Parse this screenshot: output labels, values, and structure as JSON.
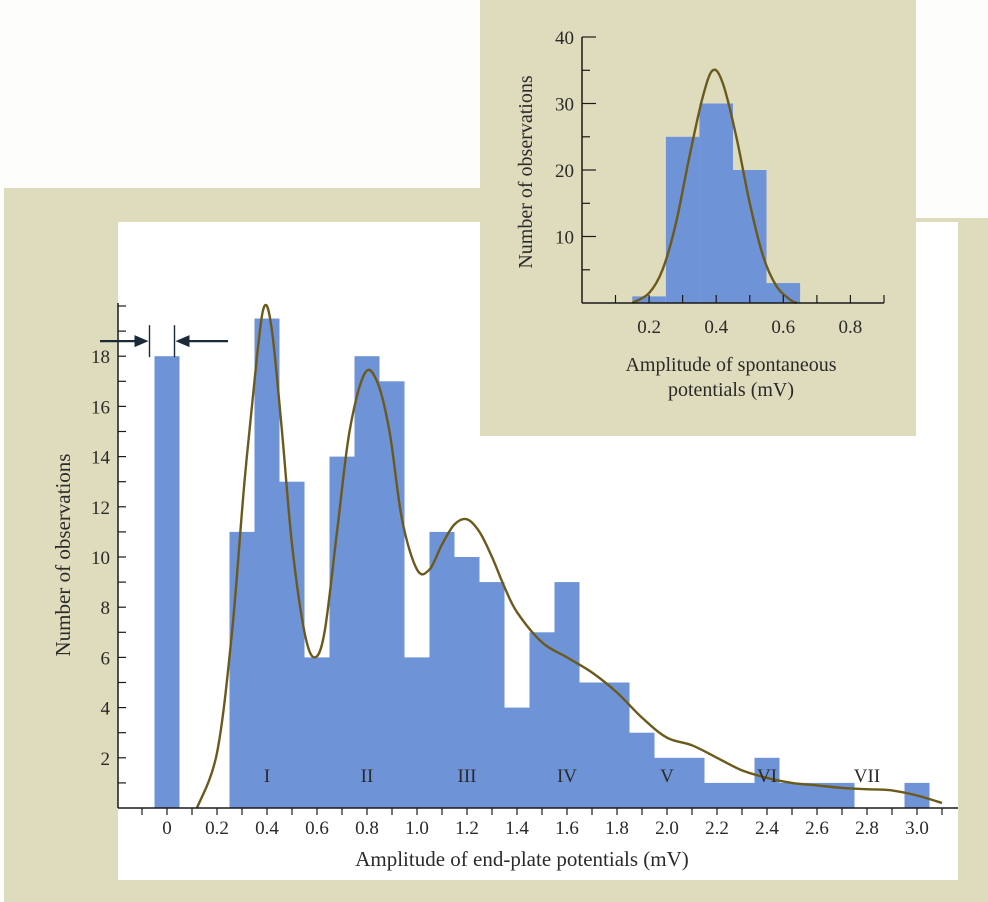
{
  "colors": {
    "panel": "#dedcbc",
    "plot_background": "#ffffff",
    "bar": "#6e93d6",
    "curve": "#6b5a1c",
    "axis": "#1a1a1a",
    "arrow": "#1a2a38"
  },
  "chart_data": [
    {
      "type": "bar",
      "xlabel": "Amplitude of end-plate potentials (mV)",
      "ylabel": "Number of observations",
      "xlim": [
        -0.15,
        3.15
      ],
      "ylim": [
        0,
        20
      ],
      "bin_width": 0.1,
      "x_ticks": [
        "0",
        "0.2",
        "0.4",
        "0.6",
        "0.8",
        "1.0",
        "1.2",
        "1.4",
        "1.6",
        "1.8",
        "2.0",
        "2.2",
        "2.4",
        "2.6",
        "2.8",
        "3.0"
      ],
      "y_ticks": [
        "2",
        "4",
        "6",
        "8",
        "10",
        "12",
        "14",
        "16",
        "18"
      ],
      "bins": [
        {
          "x": 0.0,
          "value": 18
        },
        {
          "x": 0.3,
          "value": 11
        },
        {
          "x": 0.4,
          "value": 19.5
        },
        {
          "x": 0.5,
          "value": 13
        },
        {
          "x": 0.6,
          "value": 6
        },
        {
          "x": 0.7,
          "value": 14
        },
        {
          "x": 0.8,
          "value": 18
        },
        {
          "x": 0.9,
          "value": 17
        },
        {
          "x": 1.0,
          "value": 6
        },
        {
          "x": 1.1,
          "value": 11
        },
        {
          "x": 1.2,
          "value": 10
        },
        {
          "x": 1.3,
          "value": 9
        },
        {
          "x": 1.4,
          "value": 4
        },
        {
          "x": 1.5,
          "value": 7
        },
        {
          "x": 1.6,
          "value": 9
        },
        {
          "x": 1.7,
          "value": 5
        },
        {
          "x": 1.8,
          "value": 5
        },
        {
          "x": 1.9,
          "value": 3
        },
        {
          "x": 2.0,
          "value": 2
        },
        {
          "x": 2.1,
          "value": 2
        },
        {
          "x": 2.2,
          "value": 1
        },
        {
          "x": 2.3,
          "value": 1
        },
        {
          "x": 2.4,
          "value": 2
        },
        {
          "x": 2.5,
          "value": 1
        },
        {
          "x": 2.6,
          "value": 1
        },
        {
          "x": 2.7,
          "value": 1
        },
        {
          "x": 3.0,
          "value": 1
        }
      ],
      "fit_curve": [
        [
          0.12,
          0
        ],
        [
          0.2,
          2.2
        ],
        [
          0.26,
          7
        ],
        [
          0.31,
          13
        ],
        [
          0.36,
          18
        ],
        [
          0.39,
          20
        ],
        [
          0.42,
          19
        ],
        [
          0.46,
          15
        ],
        [
          0.5,
          10.5
        ],
        [
          0.55,
          7
        ],
        [
          0.59,
          6
        ],
        [
          0.63,
          7
        ],
        [
          0.68,
          11
        ],
        [
          0.73,
          15
        ],
        [
          0.79,
          17.3
        ],
        [
          0.84,
          17
        ],
        [
          0.89,
          15
        ],
        [
          0.94,
          11.5
        ],
        [
          1.0,
          9.5
        ],
        [
          1.05,
          9.5
        ],
        [
          1.1,
          10.5
        ],
        [
          1.15,
          11.3
        ],
        [
          1.2,
          11.5
        ],
        [
          1.25,
          11
        ],
        [
          1.3,
          10
        ],
        [
          1.35,
          8.8
        ],
        [
          1.4,
          7.8
        ],
        [
          1.5,
          6.6
        ],
        [
          1.6,
          6
        ],
        [
          1.7,
          5.4
        ],
        [
          1.8,
          4.6
        ],
        [
          1.9,
          3.6
        ],
        [
          2.0,
          2.8
        ],
        [
          2.1,
          2.5
        ],
        [
          2.2,
          2
        ],
        [
          2.3,
          1.5
        ],
        [
          2.4,
          1.2
        ],
        [
          2.5,
          1
        ],
        [
          2.6,
          0.9
        ],
        [
          2.7,
          0.8
        ],
        [
          2.8,
          0.75
        ],
        [
          2.9,
          0.7
        ],
        [
          3.0,
          0.5
        ],
        [
          3.1,
          0.2
        ]
      ],
      "peak_labels": [
        {
          "label": "I",
          "x": 0.4
        },
        {
          "label": "II",
          "x": 0.8
        },
        {
          "label": "III",
          "x": 1.2
        },
        {
          "label": "IV",
          "x": 1.6
        },
        {
          "label": "V",
          "x": 2.0
        },
        {
          "label": "VI",
          "x": 2.4
        },
        {
          "label": "VII",
          "x": 2.8
        }
      ],
      "gap_marker": {
        "x_start": -0.07,
        "x_end": 0.03,
        "y": 18.6
      }
    },
    {
      "type": "bar",
      "xlabel": "Amplitude of spontaneous potentials (mV)",
      "ylabel": "Number of observations",
      "xlim": [
        0.0,
        0.9
      ],
      "ylim": [
        0,
        40
      ],
      "bin_width": 0.1,
      "x_ticks": [
        "0.2",
        "0.4",
        "0.6",
        "0.8"
      ],
      "y_ticks": [
        "10",
        "20",
        "30",
        "40"
      ],
      "bins": [
        {
          "x": 0.2,
          "value": 1
        },
        {
          "x": 0.3,
          "value": 25
        },
        {
          "x": 0.4,
          "value": 30
        },
        {
          "x": 0.5,
          "value": 20
        },
        {
          "x": 0.6,
          "value": 3
        }
      ],
      "fit_curve": [
        [
          0.15,
          0
        ],
        [
          0.2,
          1.5
        ],
        [
          0.24,
          5
        ],
        [
          0.28,
          12
        ],
        [
          0.32,
          22
        ],
        [
          0.36,
          31
        ],
        [
          0.39,
          35
        ],
        [
          0.42,
          33
        ],
        [
          0.46,
          25
        ],
        [
          0.5,
          15
        ],
        [
          0.54,
          7
        ],
        [
          0.58,
          2.5
        ],
        [
          0.62,
          0.5
        ],
        [
          0.64,
          0
        ]
      ]
    }
  ]
}
